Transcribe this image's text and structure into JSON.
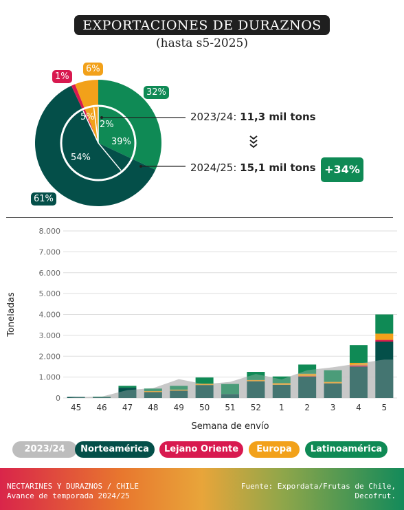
{
  "header": {
    "title": "EXPORTACIONES DE DURAZNOS",
    "subtitle": "(hasta s5-2025)"
  },
  "donut": {
    "outer_season": "2024/25",
    "inner_season": "2023/24",
    "outer_labels": [
      "32%",
      "61%",
      "1%",
      "6%"
    ],
    "inner_labels": [
      "39%",
      "54%",
      "5%",
      "2%"
    ],
    "annotation_prev_label": "2023/24: ",
    "annotation_prev_value": "11,3 mil tons",
    "annotation_curr_label": "2024/25: ",
    "annotation_curr_value": "15,1 mil tons",
    "growth": "+34%"
  },
  "colors": {
    "norteamerica": "#044f49",
    "lejano_oriente": "#d8194f",
    "europa": "#f2a11a",
    "latinoamerica": "#0f8a55",
    "prev_season": "#bdbdbd"
  },
  "chart_data": [
    {
      "type": "pie",
      "title": "2024/25",
      "categories": [
        "Latinoamérica",
        "Norteamérica",
        "Lejano Oriente",
        "Europa"
      ],
      "values": [
        32,
        61,
        1,
        6
      ]
    },
    {
      "type": "pie",
      "title": "2023/24",
      "categories": [
        "Latinoamérica",
        "Norteamérica",
        "Lejano Oriente",
        "Europa"
      ],
      "values": [
        39,
        54,
        5,
        2
      ]
    },
    {
      "type": "bar",
      "stacked": true,
      "xlabel": "Semana de envío",
      "ylabel": "Toneladas",
      "categories": [
        "45",
        "46",
        "47",
        "48",
        "49",
        "50",
        "51",
        "52",
        "1",
        "2",
        "3",
        "4",
        "5"
      ],
      "ylim": [
        0,
        8000
      ],
      "yticks": [
        "0",
        "1.000",
        "2.000",
        "3.000",
        "4.000",
        "5.000",
        "6.000",
        "7.000",
        "8.000"
      ],
      "grid": true,
      "series": [
        {
          "name": "Norteamérica",
          "values": [
            50,
            40,
            490,
            280,
            350,
            620,
            190,
            800,
            630,
            1020,
            700,
            1500,
            2700
          ]
        },
        {
          "name": "Lejano Oriente",
          "values": [
            0,
            0,
            0,
            0,
            0,
            0,
            0,
            0,
            0,
            20,
            0,
            60,
            80
          ]
        },
        {
          "name": "Europa",
          "values": [
            0,
            0,
            0,
            50,
            50,
            60,
            0,
            60,
            80,
            120,
            70,
            120,
            300
          ]
        },
        {
          "name": "Latinoamérica",
          "values": [
            0,
            20,
            90,
            120,
            180,
            300,
            480,
            390,
            320,
            440,
            560,
            850,
            920
          ]
        }
      ],
      "area_series": {
        "name": "2023/24",
        "values": [
          40,
          60,
          380,
          470,
          900,
          660,
          770,
          1150,
          890,
          1330,
          1470,
          1650,
          1840
        ]
      }
    }
  ],
  "legend": {
    "prev": "2023/24",
    "norteamerica": "Norteamérica",
    "lejano_oriente": "Lejano Oriente",
    "europa": "Europa",
    "latinoamerica": "Latinoamérica"
  },
  "footer": {
    "line1": "NECTARINES Y DURAZNOS / CHILE",
    "line2": "Avance de temporada 2024/25",
    "source1": "Fuente: Expordata/Frutas de Chile,",
    "source2": "Decofrut."
  }
}
